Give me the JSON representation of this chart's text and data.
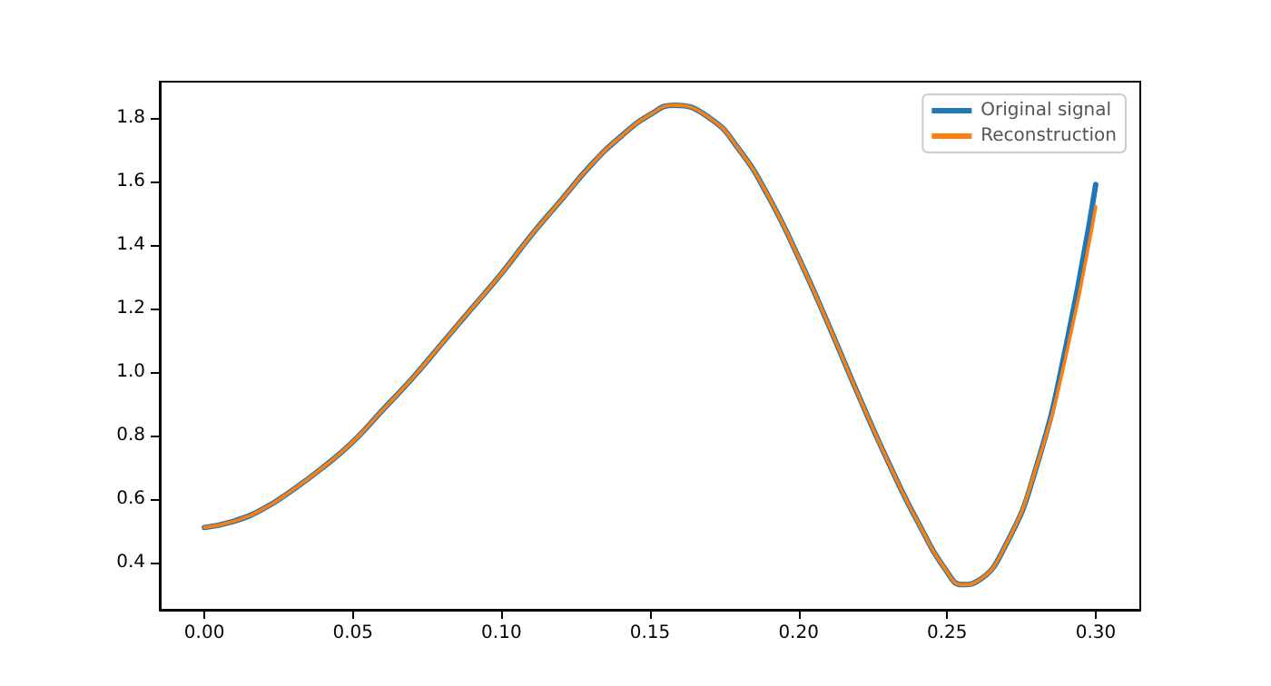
{
  "chart_data": {
    "type": "line",
    "x": [
      0,
      0.01,
      0.02,
      0.03,
      0.04,
      0.05,
      0.06,
      0.07,
      0.08,
      0.09,
      0.1,
      0.11,
      0.12,
      0.13,
      0.14,
      0.15,
      0.158,
      0.17,
      0.18,
      0.19,
      0.2,
      0.21,
      0.22,
      0.23,
      0.24,
      0.25,
      0.255,
      0.26,
      0.27,
      0.28,
      0.29,
      0.3
    ],
    "series": [
      {
        "name": "Original signal",
        "color": "#1f77b4",
        "values": [
          0.51,
          0.53,
          0.57,
          0.63,
          0.7,
          0.78,
          0.88,
          0.98,
          1.09,
          1.2,
          1.31,
          1.43,
          1.54,
          1.65,
          1.74,
          1.81,
          1.84,
          1.8,
          1.7,
          1.55,
          1.36,
          1.15,
          0.93,
          0.72,
          0.53,
          0.37,
          0.33,
          0.34,
          0.46,
          0.7,
          1.08,
          1.59
        ]
      },
      {
        "name": "Reconstruction",
        "color": "#ff7f0e",
        "values": [
          0.51,
          0.53,
          0.57,
          0.63,
          0.7,
          0.78,
          0.88,
          0.98,
          1.09,
          1.2,
          1.31,
          1.43,
          1.54,
          1.65,
          1.74,
          1.81,
          1.84,
          1.8,
          1.7,
          1.55,
          1.36,
          1.15,
          0.93,
          0.72,
          0.53,
          0.37,
          0.33,
          0.34,
          0.46,
          0.7,
          1.05,
          1.52
        ]
      }
    ],
    "xlim": [
      -0.015,
      0.315
    ],
    "xticks": [
      {
        "value": 0,
        "label": "0.00"
      },
      0.05,
      {
        "value": 0.1,
        "label": "0.10"
      },
      0.15,
      {
        "value": 0.2,
        "label": "0.20"
      },
      0.25,
      {
        "value": 0.3,
        "label": "0.30"
      }
    ],
    "ylim": [
      0.251,
      1.914
    ],
    "yticks": [
      0.4,
      0.6,
      0.8,
      {
        "value": 1,
        "label": "1.0"
      },
      1.2,
      1.4,
      1.6,
      1.8
    ],
    "legend": "top right",
    "grid": false,
    "marker": "none",
    "line_style": "solid"
  }
}
